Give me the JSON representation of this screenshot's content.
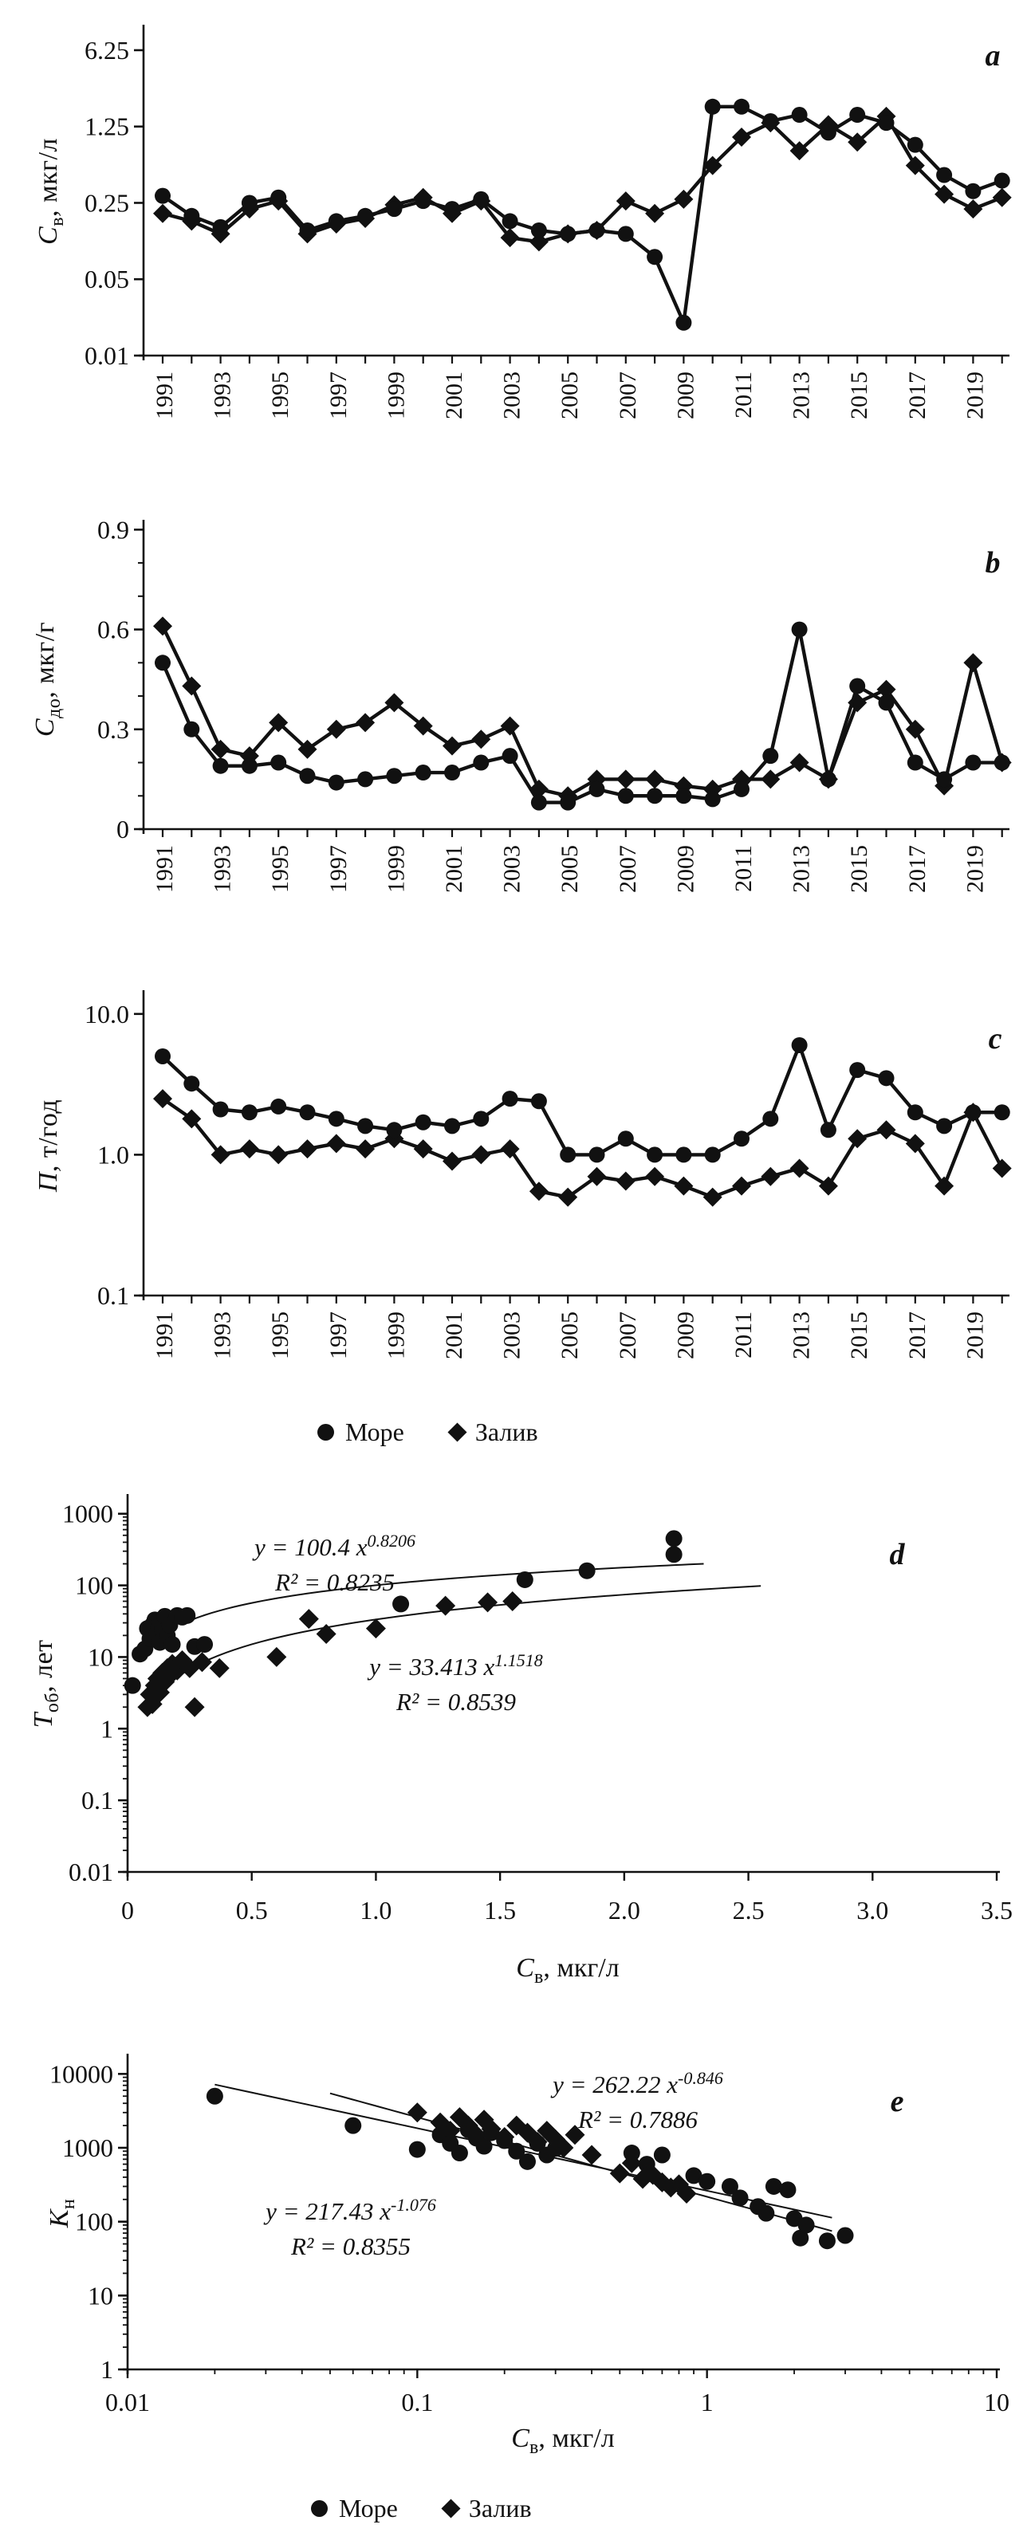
{
  "figure": {
    "background": "#ffffff",
    "ink": "#111111"
  },
  "legend": {
    "items": [
      {
        "marker": "circle",
        "label": "Море"
      },
      {
        "marker": "diamond",
        "label": "Залив"
      }
    ]
  },
  "panel_letters": {
    "a": "a",
    "b": "b",
    "c": "c",
    "d": "d",
    "e": "e"
  },
  "ylabels": {
    "a": {
      "v": "C",
      "sub": "в",
      "rest": ", мкг/л"
    },
    "b": {
      "v": "C",
      "sub": "до",
      "rest": ", мкг/г"
    },
    "c": {
      "v": "П",
      "sub": "",
      "rest": ", т/год"
    },
    "d": {
      "v": "T",
      "sub": "об",
      "rest": ", лет"
    },
    "e": {
      "v": "К",
      "sub": "н",
      "rest": ""
    }
  },
  "xlabels": {
    "d": {
      "v": "C",
      "sub": "в",
      "rest": ", мкг/л"
    },
    "e": {
      "v": "C",
      "sub": "в",
      "rest": ", мкг/л"
    }
  },
  "chart_data": [
    {
      "id": "a",
      "type": "line",
      "title": "a",
      "ylabel": "Cв, мкг/л",
      "yscale": "log",
      "ylim": [
        0.01,
        10
      ],
      "yticks": [
        {
          "v": 6.25,
          "l": "6.25"
        },
        {
          "v": 1.25,
          "l": "1.25"
        },
        {
          "v": 0.25,
          "l": "0.25"
        },
        {
          "v": 0.05,
          "l": "0.05"
        },
        {
          "v": 0.01,
          "l": "0.01"
        }
      ],
      "years": [
        1991,
        1992,
        1993,
        1994,
        1995,
        1996,
        1997,
        1998,
        1999,
        2000,
        2001,
        2002,
        2003,
        2004,
        2005,
        2006,
        2007,
        2008,
        2009,
        2010,
        2011,
        2012,
        2013,
        2014,
        2015,
        2016,
        2017,
        2018,
        2019,
        2020
      ],
      "labeled_years": [
        1991,
        1993,
        1995,
        1997,
        1999,
        2001,
        2003,
        2005,
        2007,
        2009,
        2011,
        2013,
        2015,
        2017,
        2019
      ],
      "series": [
        {
          "name": "Море",
          "marker": "circle",
          "values": [
            0.29,
            0.19,
            0.15,
            0.25,
            0.28,
            0.14,
            0.17,
            0.19,
            0.22,
            0.26,
            0.22,
            0.27,
            0.17,
            0.14,
            0.13,
            0.14,
            0.13,
            0.08,
            0.02,
            1.9,
            1.9,
            1.4,
            1.6,
            1.1,
            1.6,
            1.35,
            0.85,
            0.45,
            0.32,
            0.4
          ]
        },
        {
          "name": "Залив",
          "marker": "diamond",
          "values": [
            0.2,
            0.17,
            0.13,
            0.22,
            0.26,
            0.13,
            0.16,
            0.18,
            0.24,
            0.28,
            0.2,
            0.26,
            0.12,
            0.11,
            0.13,
            0.14,
            0.26,
            0.2,
            0.27,
            0.55,
            1.0,
            1.35,
            0.75,
            1.3,
            0.9,
            1.55,
            0.55,
            0.3,
            0.22,
            0.28
          ]
        }
      ]
    },
    {
      "id": "b",
      "type": "line",
      "title": "b",
      "ylabel": "Cдо, мкг/г",
      "yscale": "linear",
      "ylim": [
        0,
        0.92
      ],
      "yticks": [
        {
          "v": 0.9,
          "l": "0.9"
        },
        {
          "v": 0.6,
          "l": "0.6"
        },
        {
          "v": 0.3,
          "l": "0.3"
        },
        {
          "v": 0,
          "l": "0"
        }
      ],
      "minor_step": 0.1,
      "years": [
        1991,
        1992,
        1993,
        1994,
        1995,
        1996,
        1997,
        1998,
        1999,
        2000,
        2001,
        2002,
        2003,
        2004,
        2005,
        2006,
        2007,
        2008,
        2009,
        2010,
        2011,
        2012,
        2013,
        2014,
        2015,
        2016,
        2017,
        2018,
        2019,
        2020
      ],
      "labeled_years": [
        1991,
        1993,
        1995,
        1997,
        1999,
        2001,
        2003,
        2005,
        2007,
        2009,
        2011,
        2013,
        2015,
        2017,
        2019
      ],
      "series": [
        {
          "name": "Море",
          "marker": "circle",
          "values": [
            0.5,
            0.3,
            0.19,
            0.19,
            0.2,
            0.16,
            0.14,
            0.15,
            0.16,
            0.17,
            0.17,
            0.2,
            0.22,
            0.08,
            0.08,
            0.12,
            0.1,
            0.1,
            0.1,
            0.09,
            0.12,
            0.22,
            0.6,
            0.15,
            0.43,
            0.38,
            0.2,
            0.15,
            0.2,
            0.2
          ]
        },
        {
          "name": "Залив",
          "marker": "diamond",
          "values": [
            0.61,
            0.43,
            0.24,
            0.22,
            0.32,
            0.24,
            0.3,
            0.32,
            0.38,
            0.31,
            0.25,
            0.27,
            0.31,
            0.12,
            0.1,
            0.15,
            0.15,
            0.15,
            0.13,
            0.12,
            0.15,
            0.15,
            0.2,
            0.15,
            0.38,
            0.42,
            0.3,
            0.13,
            0.5,
            0.2
          ]
        }
      ]
    },
    {
      "id": "c",
      "type": "line",
      "title": "c",
      "ylabel": "П, т/год",
      "yscale": "log",
      "ylim": [
        0.1,
        14
      ],
      "yticks": [
        {
          "v": 10,
          "l": "10.0"
        },
        {
          "v": 1,
          "l": "1.0"
        },
        {
          "v": 0.1,
          "l": "0.1"
        }
      ],
      "years": [
        1991,
        1992,
        1993,
        1994,
        1995,
        1996,
        1997,
        1998,
        1999,
        2000,
        2001,
        2002,
        2003,
        2004,
        2005,
        2006,
        2007,
        2008,
        2009,
        2010,
        2011,
        2012,
        2013,
        2014,
        2015,
        2016,
        2017,
        2018,
        2019,
        2020
      ],
      "labeled_years": [
        1991,
        1993,
        1995,
        1997,
        1999,
        2001,
        2003,
        2005,
        2007,
        2009,
        2011,
        2013,
        2015,
        2017,
        2019
      ],
      "series": [
        {
          "name": "Море",
          "marker": "circle",
          "values": [
            5.0,
            3.2,
            2.1,
            2.0,
            2.2,
            2.0,
            1.8,
            1.6,
            1.5,
            1.7,
            1.6,
            1.8,
            2.5,
            2.4,
            1.0,
            1.0,
            1.3,
            1.0,
            1.0,
            1.0,
            1.3,
            1.8,
            6.0,
            1.5,
            4.0,
            3.5,
            2.0,
            1.6,
            2.0,
            2.0
          ]
        },
        {
          "name": "Залив",
          "marker": "diamond",
          "values": [
            2.5,
            1.8,
            1.0,
            1.1,
            1.0,
            1.1,
            1.2,
            1.1,
            1.3,
            1.1,
            0.9,
            1.0,
            1.1,
            0.55,
            0.5,
            0.7,
            0.65,
            0.7,
            0.6,
            0.5,
            0.6,
            0.7,
            0.8,
            0.6,
            1.3,
            1.5,
            1.2,
            0.6,
            2.0,
            0.8
          ]
        }
      ]
    },
    {
      "id": "d",
      "type": "scatter",
      "title": "d",
      "ylabel": "Tоб, лет",
      "xlabel": "Cв, мкг/л",
      "yscale": "log",
      "ylim": [
        0.01,
        1700
      ],
      "xscale": "linear",
      "xlim": [
        0,
        3.5
      ],
      "yticks": [
        {
          "v": 1000,
          "l": "1000"
        },
        {
          "v": 100,
          "l": "100"
        },
        {
          "v": 10,
          "l": "10"
        },
        {
          "v": 1,
          "l": "1"
        },
        {
          "v": 0.1,
          "l": "0.1"
        },
        {
          "v": 0.01,
          "l": "0.01"
        }
      ],
      "xticks": [
        {
          "v": 0,
          "l": "0"
        },
        {
          "v": 0.5,
          "l": "0.5"
        },
        {
          "v": 1,
          "l": "1.0"
        },
        {
          "v": 1.5,
          "l": "1.5"
        },
        {
          "v": 2,
          "l": "2.0"
        },
        {
          "v": 2.5,
          "l": "2.5"
        },
        {
          "v": 3,
          "l": "3.0"
        },
        {
          "v": 3.5,
          "l": "3.5"
        }
      ],
      "series": [
        {
          "name": "Море",
          "marker": "circle",
          "points": [
            [
              0.02,
              4
            ],
            [
              0.05,
              11
            ],
            [
              0.07,
              13
            ],
            [
              0.08,
              25
            ],
            [
              0.09,
              18
            ],
            [
              0.1,
              28
            ],
            [
              0.11,
              33
            ],
            [
              0.12,
              22
            ],
            [
              0.13,
              30
            ],
            [
              0.13,
              16
            ],
            [
              0.14,
              25
            ],
            [
              0.15,
              37
            ],
            [
              0.16,
              20
            ],
            [
              0.17,
              28
            ],
            [
              0.18,
              15
            ],
            [
              0.2,
              38
            ],
            [
              0.22,
              36
            ],
            [
              0.24,
              38
            ],
            [
              0.27,
              14
            ],
            [
              0.31,
              15
            ],
            [
              1.1,
              55
            ],
            [
              1.6,
              120
            ],
            [
              1.85,
              160
            ],
            [
              2.2,
              270
            ],
            [
              2.2,
              450
            ]
          ]
        },
        {
          "name": "Залив",
          "marker": "diamond",
          "points": [
            [
              0.08,
              2.0
            ],
            [
              0.09,
              3.0
            ],
            [
              0.1,
              2.2
            ],
            [
              0.11,
              4.0
            ],
            [
              0.12,
              5.0
            ],
            [
              0.13,
              3.2
            ],
            [
              0.14,
              6.0
            ],
            [
              0.15,
              4.5
            ],
            [
              0.16,
              7.0
            ],
            [
              0.17,
              5.5
            ],
            [
              0.18,
              8.0
            ],
            [
              0.2,
              6.5
            ],
            [
              0.22,
              9.0
            ],
            [
              0.25,
              7.0
            ],
            [
              0.27,
              2.0
            ],
            [
              0.3,
              8.5
            ],
            [
              0.37,
              7.0
            ],
            [
              0.6,
              10
            ],
            [
              0.73,
              34
            ],
            [
              0.8,
              21
            ],
            [
              1.0,
              25
            ],
            [
              1.28,
              52
            ],
            [
              1.45,
              58
            ],
            [
              1.55,
              60
            ]
          ]
        }
      ],
      "fits": [
        {
          "series": "Море",
          "eq_pre": "y = 100.4 x",
          "eq_exp": "0.8206",
          "r2": "R² = 0.8235",
          "a": 100.4,
          "b": 0.8206,
          "xrange": [
            0.25,
            2.32
          ]
        },
        {
          "series": "Залив",
          "eq_pre": "y = 33.413 x",
          "eq_exp": "1.1518",
          "r2": "R² = 0.8539",
          "a": 33.413,
          "b": 1.1518,
          "xrange": [
            0.12,
            2.55
          ]
        }
      ]
    },
    {
      "id": "e",
      "type": "scatter",
      "title": "e",
      "ylabel": "Кн",
      "xlabel": "Cв, мкг/л",
      "yscale": "log",
      "ylim": [
        1,
        17000
      ],
      "xscale": "log",
      "xlim": [
        0.01,
        10
      ],
      "yticks": [
        {
          "v": 10000,
          "l": "10000"
        },
        {
          "v": 1000,
          "l": "1000"
        },
        {
          "v": 100,
          "l": "100"
        },
        {
          "v": 10,
          "l": "10"
        },
        {
          "v": 1,
          "l": "1"
        }
      ],
      "xticks": [
        {
          "v": 0.01,
          "l": "0.01"
        },
        {
          "v": 0.1,
          "l": "0.1"
        },
        {
          "v": 1,
          "l": "1"
        },
        {
          "v": 10,
          "l": "10"
        }
      ],
      "series": [
        {
          "name": "Море",
          "marker": "circle",
          "points": [
            [
              0.02,
              5000
            ],
            [
              0.06,
              2000
            ],
            [
              0.1,
              950
            ],
            [
              0.12,
              1500
            ],
            [
              0.13,
              1150
            ],
            [
              0.14,
              850
            ],
            [
              0.15,
              1750
            ],
            [
              0.16,
              1350
            ],
            [
              0.17,
              1050
            ],
            [
              0.18,
              1600
            ],
            [
              0.2,
              1250
            ],
            [
              0.22,
              900
            ],
            [
              0.24,
              650
            ],
            [
              0.26,
              1150
            ],
            [
              0.28,
              800
            ],
            [
              0.3,
              980
            ],
            [
              0.55,
              850
            ],
            [
              0.62,
              600
            ],
            [
              0.7,
              800
            ],
            [
              0.9,
              420
            ],
            [
              1.0,
              350
            ],
            [
              1.2,
              300
            ],
            [
              1.3,
              210
            ],
            [
              1.5,
              160
            ],
            [
              1.6,
              130
            ],
            [
              1.7,
              300
            ],
            [
              1.9,
              270
            ],
            [
              2.0,
              110
            ],
            [
              2.1,
              60
            ],
            [
              2.2,
              90
            ],
            [
              2.6,
              55
            ],
            [
              3.0,
              65
            ]
          ]
        },
        {
          "name": "Залив",
          "marker": "diamond",
          "points": [
            [
              0.1,
              3000
            ],
            [
              0.12,
              2200
            ],
            [
              0.13,
              1700
            ],
            [
              0.14,
              2600
            ],
            [
              0.15,
              2000
            ],
            [
              0.16,
              1500
            ],
            [
              0.17,
              2400
            ],
            [
              0.18,
              1800
            ],
            [
              0.2,
              1400
            ],
            [
              0.22,
              2000
            ],
            [
              0.24,
              1600
            ],
            [
              0.26,
              1200
            ],
            [
              0.28,
              1700
            ],
            [
              0.3,
              1300
            ],
            [
              0.32,
              1000
            ],
            [
              0.35,
              1500
            ],
            [
              0.4,
              800
            ],
            [
              0.5,
              450
            ],
            [
              0.55,
              620
            ],
            [
              0.6,
              380
            ],
            [
              0.65,
              430
            ],
            [
              0.7,
              340
            ],
            [
              0.75,
              290
            ],
            [
              0.8,
              320
            ],
            [
              0.85,
              240
            ]
          ]
        }
      ],
      "fits": [
        {
          "series": "Море",
          "eq_pre": "y = 262.22 x",
          "eq_exp": "-0.846",
          "r2": "R² = 0.7886",
          "a": 262.22,
          "b": -0.846,
          "xrange": [
            0.02,
            2.7
          ]
        },
        {
          "series": "Залив",
          "eq_pre": "y = 217.43 x",
          "eq_exp": "-1.076",
          "r2": "R² = 0.8355",
          "a": 217.43,
          "b": -1.076,
          "xrange": [
            0.05,
            2.7
          ]
        }
      ]
    }
  ]
}
